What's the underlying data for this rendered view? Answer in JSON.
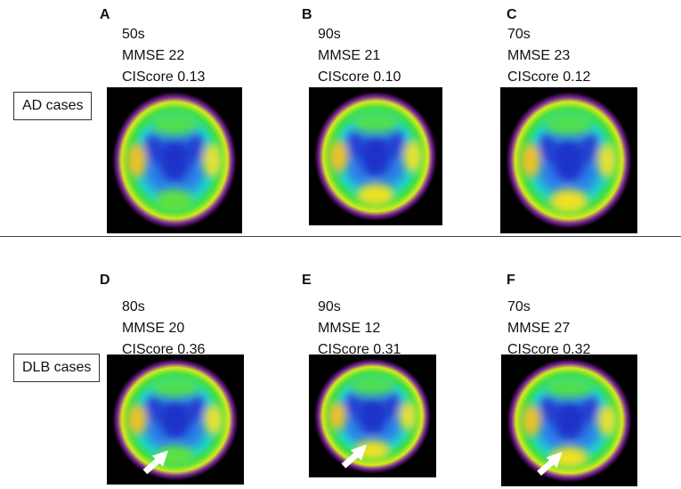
{
  "groups": [
    {
      "label": "AD cases",
      "panels": [
        {
          "letter": "A",
          "age": "50s",
          "mmse": "MMSE 22",
          "ciscore": "CIScore 0.13"
        },
        {
          "letter": "B",
          "age": "90s",
          "mmse": "MMSE 21",
          "ciscore": "CIScore 0.10"
        },
        {
          "letter": "C",
          "age": "70s",
          "mmse": "MMSE 23",
          "ciscore": "CIScore 0.12"
        }
      ]
    },
    {
      "label": "DLB cases",
      "panels": [
        {
          "letter": "D",
          "age": "80s",
          "mmse": "MMSE 20",
          "ciscore": "CIScore 0.36"
        },
        {
          "letter": "E",
          "age": "90s",
          "mmse": "MMSE 12",
          "ciscore": "CIScore 0.31"
        },
        {
          "letter": "F",
          "age": "70s",
          "mmse": "MMSE 27",
          "ciscore": "CIScore 0.32"
        }
      ]
    }
  ]
}
